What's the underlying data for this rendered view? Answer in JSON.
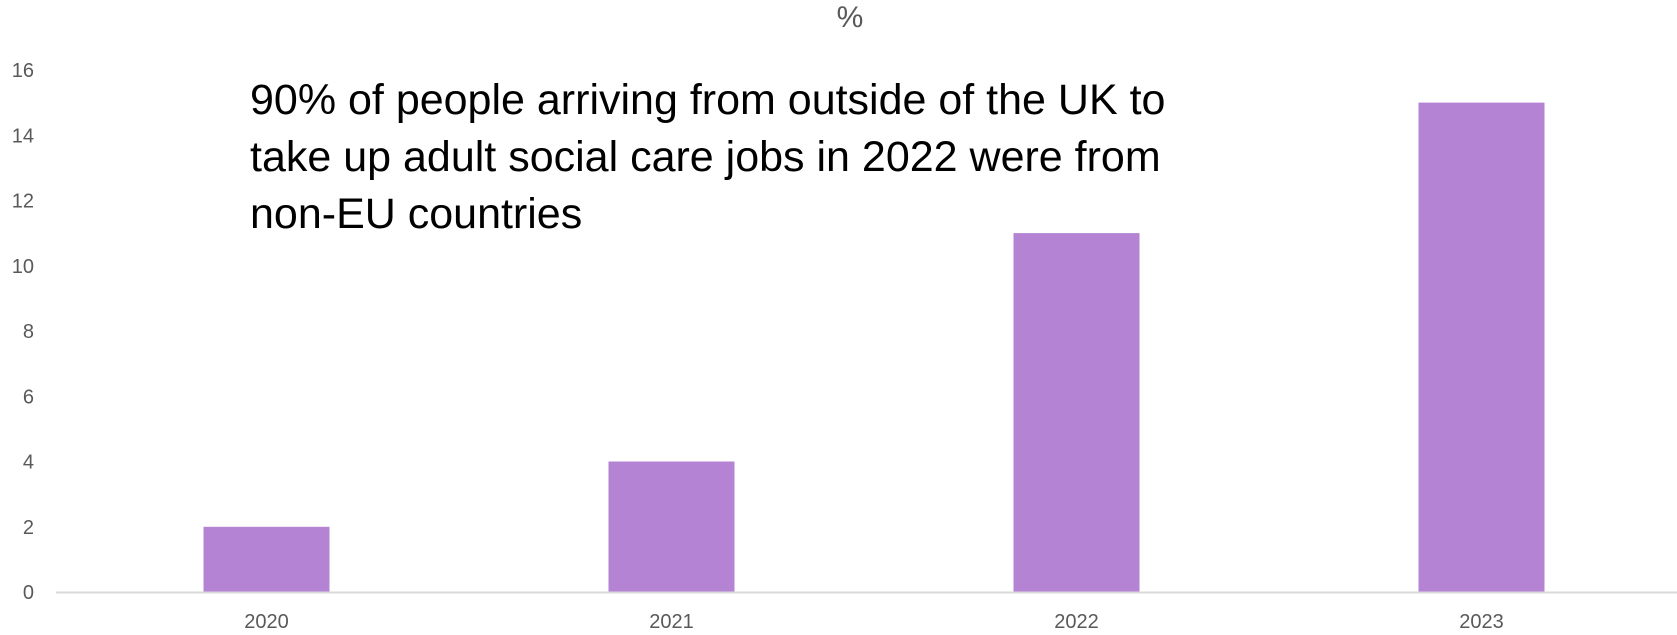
{
  "chart_data": {
    "type": "bar",
    "title": "%",
    "xlabel": "",
    "ylabel": "",
    "categories": [
      "2020",
      "2021",
      "2022",
      "2023"
    ],
    "values": [
      2,
      4,
      11,
      15
    ],
    "ylim": [
      0,
      16
    ],
    "yticks": [
      "0",
      "2",
      "4",
      "6",
      "8",
      "10",
      "12",
      "14",
      "16"
    ],
    "grid": false,
    "legend": "none",
    "bar_color": "#b583d4",
    "axis_color": "#d9d9d9",
    "annotations": [
      "90% of people arriving from outside of the UK to take up adult social care jobs in 2022 were from non-EU countries"
    ]
  }
}
